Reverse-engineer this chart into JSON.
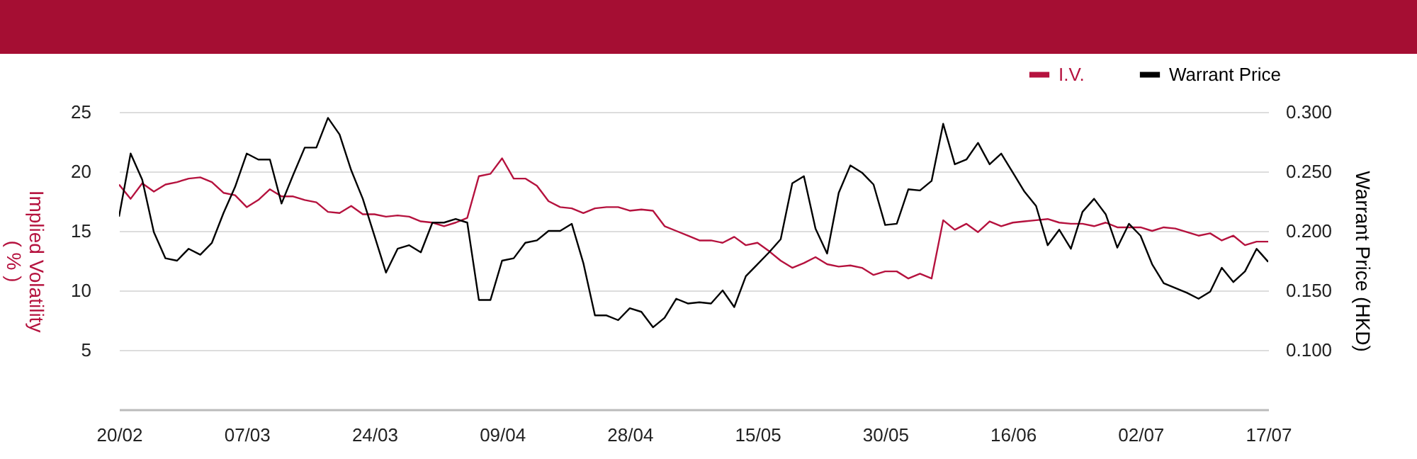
{
  "chart_data": {
    "type": "line",
    "ylabel": "Implied Volatility\n( % )",
    "y2label": "Warrant Price (HKD)",
    "categories": [
      "20/02",
      null,
      null,
      null,
      null,
      null,
      null,
      null,
      null,
      null,
      null,
      "07/03",
      null,
      null,
      null,
      null,
      null,
      null,
      null,
      null,
      null,
      null,
      "24/03",
      null,
      null,
      null,
      null,
      null,
      null,
      null,
      null,
      null,
      null,
      "09/04",
      null,
      null,
      null,
      null,
      null,
      null,
      null,
      null,
      null,
      null,
      "28/04",
      null,
      null,
      null,
      null,
      null,
      null,
      null,
      null,
      null,
      null,
      "15/05",
      null,
      null,
      null,
      null,
      null,
      null,
      null,
      null,
      null,
      null,
      "30/05",
      null,
      null,
      null,
      null,
      null,
      null,
      null,
      null,
      null,
      null,
      "16/06",
      null,
      null,
      null,
      null,
      null,
      null,
      null,
      null,
      null,
      null,
      "02/07",
      null,
      null,
      null,
      null,
      null,
      null,
      null,
      null,
      null,
      null,
      "17/07"
    ],
    "series": [
      {
        "name": "I.V.",
        "color": "#b5123e",
        "values": [
          18.9,
          17.7,
          19.0,
          18.3,
          18.9,
          19.1,
          19.4,
          19.5,
          19.1,
          18.2,
          18.0,
          17.0,
          17.6,
          18.5,
          17.9,
          17.9,
          17.6,
          17.4,
          16.6,
          16.5,
          17.1,
          16.4,
          16.4,
          16.2,
          16.3,
          16.2,
          15.8,
          15.7,
          15.4,
          15.7,
          16.1,
          19.6,
          19.8,
          21.1,
          19.4,
          19.4,
          18.8,
          17.5,
          17.0,
          16.9,
          16.5,
          16.9,
          17.0,
          17.0,
          16.7,
          16.8,
          16.7,
          15.4,
          15.0,
          14.6,
          14.2,
          14.2,
          14.0,
          14.5,
          13.8,
          14.0,
          13.3,
          12.5,
          11.9,
          12.3,
          12.8,
          12.2,
          12.0,
          12.1,
          11.9,
          11.3,
          11.6,
          11.6,
          11.0,
          11.4,
          11.0,
          15.9,
          15.1,
          15.6,
          14.9,
          15.8,
          15.4,
          15.7,
          15.8,
          15.9,
          16.0,
          15.7,
          15.6,
          15.6,
          15.4,
          15.7,
          15.3,
          15.3,
          15.3,
          15.0,
          15.3,
          15.2,
          14.9,
          14.6,
          14.8,
          14.2,
          14.6,
          13.8,
          14.1,
          14.1
        ]
      },
      {
        "name": "Warrant Price",
        "color": "#000000",
        "axis": "y2",
        "values": [
          0.212,
          0.265,
          0.243,
          0.199,
          0.177,
          0.175,
          0.185,
          0.18,
          0.19,
          0.215,
          0.237,
          0.265,
          0.26,
          0.26,
          0.223,
          0.247,
          0.27,
          0.27,
          0.295,
          0.281,
          0.251,
          0.227,
          0.196,
          0.165,
          0.185,
          0.188,
          0.182,
          0.207,
          0.207,
          0.21,
          0.207,
          0.142,
          0.142,
          0.175,
          0.177,
          0.19,
          0.192,
          0.2,
          0.2,
          0.206,
          0.173,
          0.129,
          0.129,
          0.125,
          0.135,
          0.132,
          0.119,
          0.127,
          0.143,
          0.139,
          0.14,
          0.139,
          0.15,
          0.136,
          0.162,
          0.172,
          0.182,
          0.193,
          0.24,
          0.246,
          0.202,
          0.181,
          0.232,
          0.255,
          0.249,
          0.239,
          0.205,
          0.206,
          0.235,
          0.234,
          0.242,
          0.29,
          0.256,
          0.26,
          0.274,
          0.256,
          0.265,
          0.249,
          0.233,
          0.221,
          0.188,
          0.201,
          0.185,
          0.216,
          0.227,
          0.214,
          0.186,
          0.206,
          0.196,
          0.172,
          0.156,
          0.152,
          0.148,
          0.143,
          0.149,
          0.169,
          0.157,
          0.166,
          0.185,
          0.174
        ]
      }
    ],
    "ylim": [
      0,
      25
    ],
    "yticks": [
      5,
      10,
      15,
      20,
      25
    ],
    "y2lim": [
      0.05,
      0.3
    ],
    "y2ticks": [
      {
        "value": 0.1,
        "label": "0.100"
      },
      {
        "value": 0.15,
        "label": "0.150"
      },
      {
        "value": 0.2,
        "label": "0.200"
      },
      {
        "value": 0.25,
        "label": "0.250"
      },
      {
        "value": 0.3,
        "label": "0.300"
      }
    ],
    "grid": "y",
    "legend": "top right"
  }
}
